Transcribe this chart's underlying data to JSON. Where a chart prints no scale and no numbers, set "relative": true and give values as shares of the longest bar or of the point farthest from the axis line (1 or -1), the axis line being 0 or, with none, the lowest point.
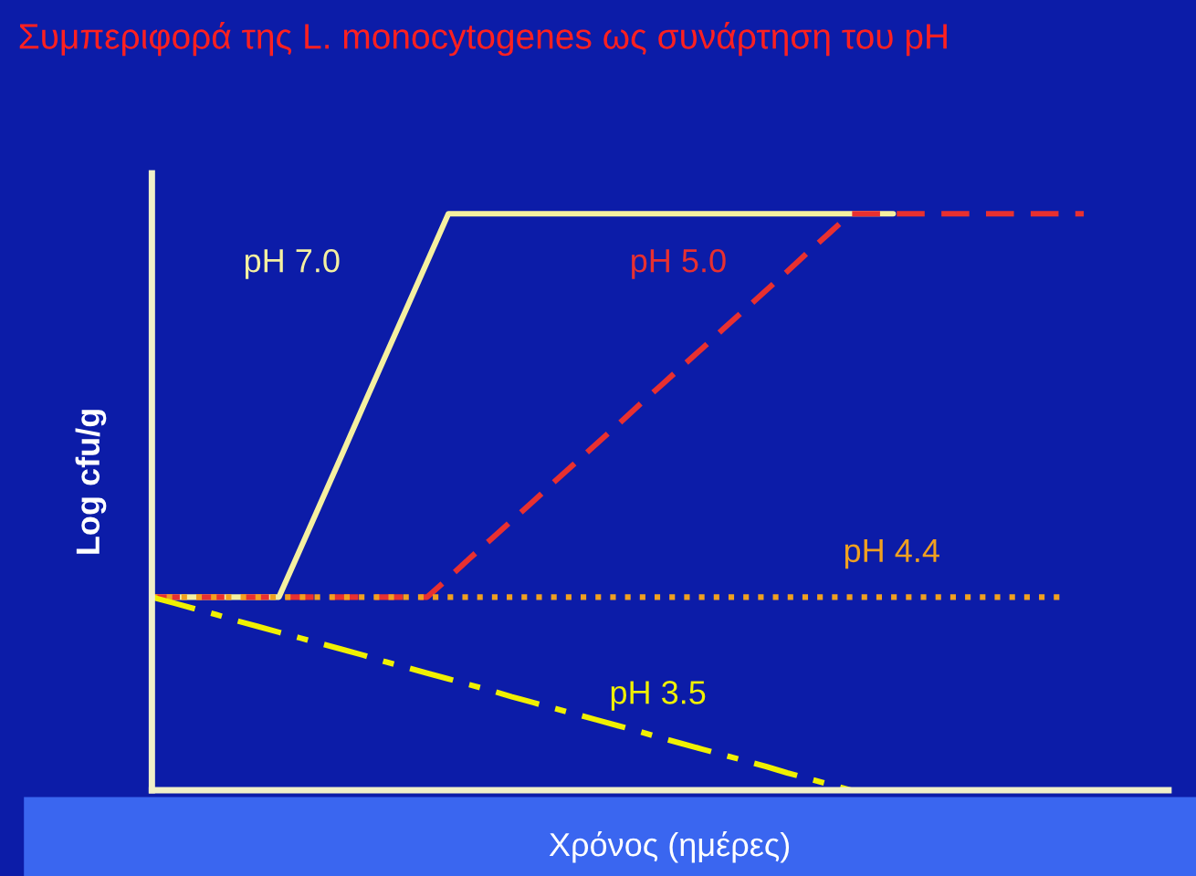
{
  "chart_data": {
    "type": "line",
    "title": "Συμπεριφορά της L. monocytogenes ως συνάρτηση του pH",
    "xlabel": "Χρόνος (ημέρες)",
    "ylabel": "Log cfu/g",
    "relative": true,
    "categories": [
      null,
      null,
      null,
      null,
      null,
      null,
      null,
      null,
      null,
      null,
      null,
      null,
      null,
      null,
      null,
      null,
      null,
      null,
      null,
      null,
      null,
      null,
      null,
      null,
      null,
      null,
      null,
      null,
      null,
      null,
      null,
      null,
      null,
      null,
      null,
      null,
      null,
      null,
      null,
      null,
      null,
      null,
      null,
      null,
      null,
      null,
      null,
      null,
      null
    ],
    "series": [
      {
        "name": "pH 7.0",
        "color": "#f5f0a0",
        "line_style": "solid",
        "values": [
          0.335,
          0.335,
          0.335,
          0.335,
          0.335,
          0.335,
          0.335,
          0.418,
          0.501,
          0.584,
          0.668,
          0.751,
          0.834,
          0.917,
          1,
          1,
          1,
          1,
          1,
          1,
          1,
          1,
          1,
          1,
          1,
          1,
          1,
          1,
          1,
          1,
          1,
          1,
          1,
          1,
          1,
          1,
          null,
          null,
          null,
          null,
          null,
          null,
          null,
          null,
          null,
          null,
          null,
          null,
          null
        ]
      },
      {
        "name": "pH 5.0",
        "color": "#e83030",
        "line_style": "dashed",
        "values": [
          0.335,
          0.335,
          0.335,
          0.335,
          0.335,
          0.335,
          0.335,
          0.335,
          0.335,
          0.335,
          0.335,
          0.335,
          0.335,
          0.335,
          0.368,
          0.402,
          0.435,
          0.468,
          0.501,
          0.535,
          0.568,
          0.601,
          0.634,
          0.668,
          0.701,
          0.734,
          0.767,
          0.801,
          0.834,
          0.867,
          0.9,
          0.934,
          0.967,
          1,
          1,
          1,
          1,
          1,
          1,
          1,
          1,
          1,
          1,
          1,
          1,
          null,
          null,
          null,
          null
        ]
      },
      {
        "name": "pH 4.4",
        "color": "#f0a020",
        "line_style": "dotted",
        "values": [
          0.335,
          0.335,
          0.335,
          0.335,
          0.335,
          0.335,
          0.335,
          0.335,
          0.335,
          0.335,
          0.335,
          0.335,
          0.335,
          0.335,
          0.335,
          0.335,
          0.335,
          0.335,
          0.335,
          0.335,
          0.335,
          0.335,
          0.335,
          0.335,
          0.335,
          0.335,
          0.335,
          0.335,
          0.335,
          0.335,
          0.335,
          0.335,
          0.335,
          0.335,
          0.335,
          0.335,
          0.335,
          0.335,
          0.335,
          0.335,
          0.335,
          0.335,
          0.335,
          0.335,
          null,
          null,
          null,
          null,
          null
        ]
      },
      {
        "name": "pH 3.5",
        "color": "#f0f000",
        "line_style": "dashdot",
        "values": [
          0.335,
          0.325,
          0.315,
          0.305,
          0.294,
          0.284,
          0.274,
          0.264,
          0.254,
          0.244,
          0.234,
          0.223,
          0.213,
          0.203,
          0.193,
          0.183,
          0.173,
          0.162,
          0.152,
          0.142,
          0.132,
          0.122,
          0.112,
          0.102,
          0.091,
          0.081,
          0.071,
          0.061,
          0.051,
          0.041,
          0.03,
          0.02,
          0.01,
          0,
          null,
          null,
          null,
          null,
          null,
          null,
          null,
          null,
          null,
          null,
          null,
          null,
          null,
          null,
          null
        ]
      }
    ]
  }
}
